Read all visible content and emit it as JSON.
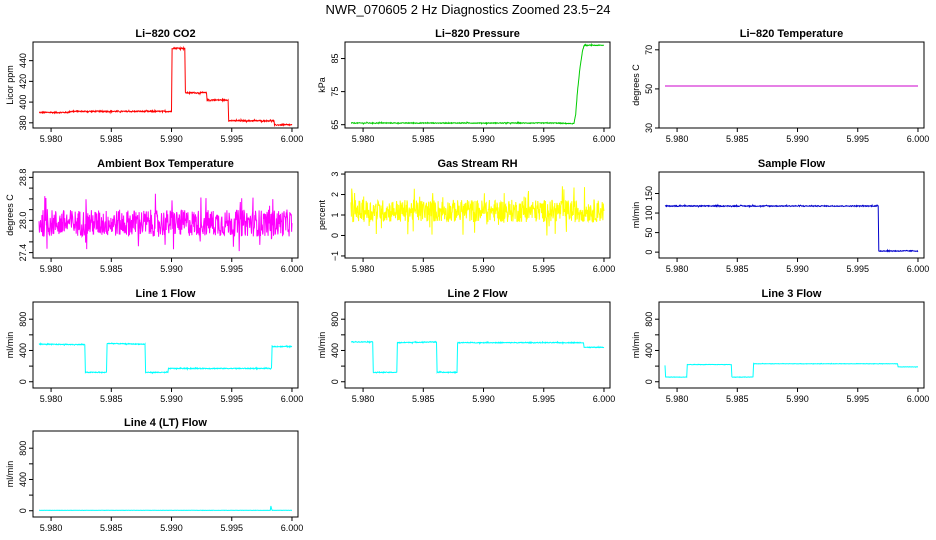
{
  "figure": {
    "title": "NWR_070605  2 Hz Diagnostics Zoomed 23.5−24"
  },
  "chart_data": [
    {
      "type": "line",
      "title": "Li−820 CO2",
      "ylabel": "Licor ppm",
      "color": "#ff0000",
      "xlim": [
        5.9785,
        6.0005
      ],
      "ylim": [
        375,
        458
      ],
      "xticks": [
        5.98,
        5.985,
        5.99,
        5.995,
        6.0
      ],
      "xticklabels": [
        "5.980",
        "5.985",
        "5.990",
        "5.995",
        "6.000"
      ],
      "yticks": [
        380,
        400,
        420,
        440
      ],
      "yticklabels": [
        "380",
        "400",
        "420",
        "440"
      ],
      "noise": 0.6,
      "connect": "step",
      "x": [
        5.979,
        5.9814,
        5.9816,
        5.99,
        5.99005,
        5.9911,
        5.99115,
        5.9929,
        5.99295,
        5.9947,
        5.99475,
        5.9985,
        5.99855,
        6.0
      ],
      "y": [
        390,
        390,
        391,
        391,
        452,
        452,
        409,
        409,
        402,
        402,
        382,
        382,
        378,
        378
      ]
    },
    {
      "type": "line",
      "title": "Li−820 Pressure",
      "ylabel": "kPa",
      "color": "#00cc00",
      "xlim": [
        5.9785,
        6.0005
      ],
      "ylim": [
        64,
        90
      ],
      "xticks": [
        5.98,
        5.985,
        5.99,
        5.995,
        6.0
      ],
      "xticklabels": [
        "5.980",
        "5.985",
        "5.990",
        "5.995",
        "6.000"
      ],
      "yticks": [
        65,
        75,
        85
      ],
      "yticklabels": [
        "65",
        "75",
        "85"
      ],
      "noise": 0.12,
      "connect": "line",
      "x": [
        5.979,
        5.996,
        5.9975,
        5.99765,
        5.9978,
        5.998,
        5.9982,
        5.99835,
        6.0
      ],
      "y": [
        65.5,
        65.5,
        65.3,
        68,
        75,
        82,
        87,
        89,
        89
      ]
    },
    {
      "type": "line",
      "title": "Li−820 Temperature",
      "ylabel": "degrees C",
      "color": "#cc00cc",
      "xlim": [
        5.9785,
        6.0005
      ],
      "ylim": [
        30,
        74
      ],
      "xticks": [
        5.98,
        5.985,
        5.99,
        5.995,
        6.0
      ],
      "xticklabels": [
        "5.980",
        "5.985",
        "5.990",
        "5.995",
        "6.000"
      ],
      "yticks": [
        30,
        50,
        70
      ],
      "yticklabels": [
        "30",
        "50",
        "70"
      ],
      "noise": 0,
      "connect": "line",
      "x": [
        5.979,
        6.0
      ],
      "y": [
        51.5,
        51.5
      ]
    },
    {
      "type": "line",
      "title": "Ambient Box Temperature",
      "ylabel": "degrees C",
      "color": "#ff00ff",
      "xlim": [
        5.9785,
        6.0005
      ],
      "ylim": [
        27.3,
        28.9
      ],
      "xticks": [
        5.98,
        5.985,
        5.99,
        5.995,
        6.0
      ],
      "xticklabels": [
        "5.980",
        "5.985",
        "5.990",
        "5.995",
        "6.000"
      ],
      "yticks": [
        27.4,
        27.6,
        27.8,
        28.0,
        28.2,
        28.4,
        28.6,
        28.8
      ],
      "yticklabels": [
        "27.4",
        "",
        "",
        "28.0",
        "",
        "",
        "",
        "28.8"
      ],
      "noise": 0.25,
      "connect": "line",
      "x": [
        5.979,
        6.0
      ],
      "y": [
        27.95,
        27.95
      ]
    },
    {
      "type": "line",
      "title": "Gas Stream RH",
      "ylabel": "percent",
      "color": "#ffff00",
      "xlim": [
        5.9785,
        6.0005
      ],
      "ylim": [
        -1.1,
        3.1
      ],
      "xticks": [
        5.98,
        5.985,
        5.99,
        5.995,
        6.0
      ],
      "xticklabels": [
        "5.980",
        "5.985",
        "5.990",
        "5.995",
        "6.000"
      ],
      "yticks": [
        -1,
        0,
        1,
        2,
        3
      ],
      "yticklabels": [
        "−1",
        "0",
        "1",
        "2",
        "3"
      ],
      "noise": 0.55,
      "connect": "line",
      "x": [
        5.979,
        6.0
      ],
      "y": [
        1.2,
        1.2
      ]
    },
    {
      "type": "line",
      "title": "Sample Flow",
      "ylabel": "ml/min",
      "color": "#0000cc",
      "xlim": [
        5.9785,
        6.0005
      ],
      "ylim": [
        -15,
        205
      ],
      "xticks": [
        5.98,
        5.985,
        5.99,
        5.995,
        6.0
      ],
      "xticklabels": [
        "5.980",
        "5.985",
        "5.990",
        "5.995",
        "6.000"
      ],
      "yticks": [
        0,
        50,
        100,
        150
      ],
      "yticklabels": [
        "0",
        "50",
        "100",
        "150"
      ],
      "noise": 1.2,
      "connect": "step",
      "x": [
        5.979,
        5.9967,
        5.99675,
        6.0
      ],
      "y": [
        118,
        118,
        3,
        3
      ]
    },
    {
      "type": "line",
      "title": "Line 1 Flow",
      "ylabel": "ml/min",
      "color": "#00ffff",
      "xlim": [
        5.9785,
        6.0005
      ],
      "ylim": [
        -80,
        1020
      ],
      "xticks": [
        5.98,
        5.985,
        5.99,
        5.995,
        6.0
      ],
      "xticklabels": [
        "5.980",
        "5.985",
        "5.990",
        "5.995",
        "6.000"
      ],
      "yticks": [
        0,
        200,
        400,
        600,
        800
      ],
      "yticklabels": [
        "0",
        "",
        "400",
        "",
        "800"
      ],
      "noise": 5,
      "connect": "step",
      "x": [
        5.979,
        5.9828,
        5.98285,
        5.9846,
        5.98465,
        5.9878,
        5.98785,
        5.9897,
        5.98975,
        5.9983,
        5.99835,
        6.0
      ],
      "y": [
        480,
        475,
        120,
        120,
        490,
        480,
        120,
        120,
        170,
        170,
        450,
        450
      ]
    },
    {
      "type": "line",
      "title": "Line 2 Flow",
      "ylabel": "ml/min",
      "color": "#00ffff",
      "xlim": [
        5.9785,
        6.0005
      ],
      "ylim": [
        -80,
        1020
      ],
      "xticks": [
        5.98,
        5.985,
        5.99,
        5.995,
        6.0
      ],
      "xticklabels": [
        "5.980",
        "5.985",
        "5.990",
        "5.995",
        "6.000"
      ],
      "yticks": [
        0,
        200,
        400,
        600,
        800
      ],
      "yticklabels": [
        "0",
        "",
        "400",
        "",
        "800"
      ],
      "noise": 5,
      "connect": "step",
      "x": [
        5.979,
        5.9808,
        5.98085,
        5.9828,
        5.98285,
        5.9861,
        5.98615,
        5.9878,
        5.98785,
        5.9983,
        5.99835,
        6.0
      ],
      "y": [
        510,
        510,
        120,
        120,
        500,
        510,
        120,
        120,
        500,
        500,
        440,
        440
      ]
    },
    {
      "type": "line",
      "title": "Line 3 Flow",
      "ylabel": "ml/min",
      "color": "#00ffff",
      "xlim": [
        5.9785,
        6.0005
      ],
      "ylim": [
        -80,
        1020
      ],
      "xticks": [
        5.98,
        5.985,
        5.99,
        5.995,
        6.0
      ],
      "xticklabels": [
        "5.980",
        "5.985",
        "5.990",
        "5.995",
        "6.000"
      ],
      "yticks": [
        0,
        200,
        400,
        600,
        800
      ],
      "yticklabels": [
        "0",
        "",
        "400",
        "",
        "800"
      ],
      "noise": 2,
      "connect": "step",
      "x": [
        5.979,
        5.97905,
        5.9808,
        5.98085,
        5.9845,
        5.98455,
        5.9863,
        5.98635,
        5.9983,
        5.99835,
        6.0
      ],
      "y": [
        210,
        60,
        60,
        220,
        220,
        60,
        60,
        230,
        230,
        190,
        190
      ]
    },
    {
      "type": "line",
      "title": "Line 4 (LT) Flow",
      "ylabel": "ml/min",
      "color": "#00ffff",
      "xlim": [
        5.9785,
        6.0005
      ],
      "ylim": [
        -80,
        1020
      ],
      "xticks": [
        5.98,
        5.985,
        5.99,
        5.995,
        6.0
      ],
      "xticklabels": [
        "5.980",
        "5.985",
        "5.990",
        "5.995",
        "6.000"
      ],
      "yticks": [
        0,
        200,
        400,
        600,
        800
      ],
      "yticklabels": [
        "0",
        "",
        "400",
        "",
        "800"
      ],
      "noise": 1,
      "connect": "line",
      "x": [
        5.979,
        5.9982,
        5.99825,
        5.9983,
        5.99835,
        6.0
      ],
      "y": [
        5,
        5,
        60,
        30,
        5,
        5
      ]
    }
  ]
}
